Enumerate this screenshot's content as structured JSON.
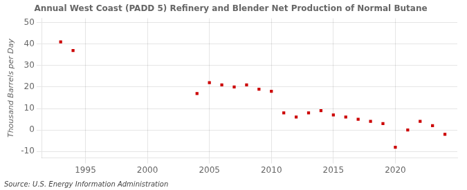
{
  "chart_data": {
    "type": "scatter",
    "title": "Annual West Coast (PADD 5) Refinery and Blender Net Production of Normal Butane",
    "ylabel": "Thousand Barrels per Day",
    "source": "Source: U.S. Energy Information Administration",
    "x": [
      1993,
      1994,
      2004,
      2005,
      2006,
      2007,
      2008,
      2009,
      2010,
      2011,
      2012,
      2013,
      2014,
      2015,
      2016,
      2017,
      2018,
      2019,
      2020,
      2021,
      2022,
      2023,
      2024
    ],
    "values": [
      41,
      37,
      17,
      22,
      21,
      20,
      21,
      19,
      18,
      8,
      6,
      8,
      9,
      7,
      6,
      5,
      4,
      3,
      -8,
      0,
      4,
      2,
      -2
    ],
    "color": "#cc0000",
    "marker": "square",
    "xlim": [
      1991.5,
      2025
    ],
    "xticks": [
      1995,
      2000,
      2005,
      2010,
      2015,
      2020
    ],
    "ylim": [
      -13,
      52
    ],
    "yticks": [
      -10,
      0,
      10,
      20,
      30,
      40,
      50
    ],
    "grid": true
  }
}
